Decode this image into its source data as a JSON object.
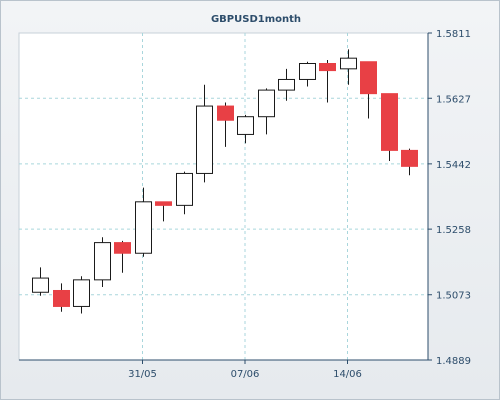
{
  "chart_data": {
    "type": "candlestick",
    "title": "GBPUSD1month",
    "xlabel": "",
    "ylabel": "",
    "ylim": [
      1.4889,
      1.5811
    ],
    "y_ticks": [
      "1.5811",
      "1.5627",
      "1.5442",
      "1.5258",
      "1.5073",
      "1.4889"
    ],
    "x_ticks": [
      {
        "label": "31/05",
        "at": 5
      },
      {
        "label": "07/06",
        "at": 10
      },
      {
        "label": "14/06",
        "at": 15
      }
    ],
    "grid": true,
    "up_color": "#ffffff",
    "down_color": "#e84045",
    "candles": [
      {
        "open": 1.508,
        "high": 1.515,
        "low": 1.507,
        "close": 1.512
      },
      {
        "open": 1.5085,
        "high": 1.5105,
        "low": 1.5025,
        "close": 1.504
      },
      {
        "open": 1.504,
        "high": 1.5125,
        "low": 1.502,
        "close": 1.5115
      },
      {
        "open": 1.5115,
        "high": 1.5235,
        "low": 1.5095,
        "close": 1.522
      },
      {
        "open": 1.522,
        "high": 1.5225,
        "low": 1.5135,
        "close": 1.519
      },
      {
        "open": 1.519,
        "high": 1.5375,
        "low": 1.518,
        "close": 1.5335
      },
      {
        "open": 1.5335,
        "high": 1.5335,
        "low": 1.528,
        "close": 1.5325
      },
      {
        "open": 1.5325,
        "high": 1.542,
        "low": 1.53,
        "close": 1.5415
      },
      {
        "open": 1.5415,
        "high": 1.5665,
        "low": 1.539,
        "close": 1.5605
      },
      {
        "open": 1.5605,
        "high": 1.5615,
        "low": 1.549,
        "close": 1.5565
      },
      {
        "open": 1.5525,
        "high": 1.558,
        "low": 1.55,
        "close": 1.5575
      },
      {
        "open": 1.5575,
        "high": 1.5655,
        "low": 1.5525,
        "close": 1.565
      },
      {
        "open": 1.565,
        "high": 1.571,
        "low": 1.562,
        "close": 1.568
      },
      {
        "open": 1.568,
        "high": 1.573,
        "low": 1.566,
        "close": 1.5725
      },
      {
        "open": 1.5725,
        "high": 1.5735,
        "low": 1.5615,
        "close": 1.5705
      },
      {
        "open": 1.571,
        "high": 1.5765,
        "low": 1.5665,
        "close": 1.574
      },
      {
        "open": 1.573,
        "high": 1.573,
        "low": 1.557,
        "close": 1.564
      },
      {
        "open": 1.564,
        "high": 1.564,
        "low": 1.545,
        "close": 1.548
      },
      {
        "open": 1.548,
        "high": 1.5485,
        "low": 1.541,
        "close": 1.5435
      }
    ]
  }
}
